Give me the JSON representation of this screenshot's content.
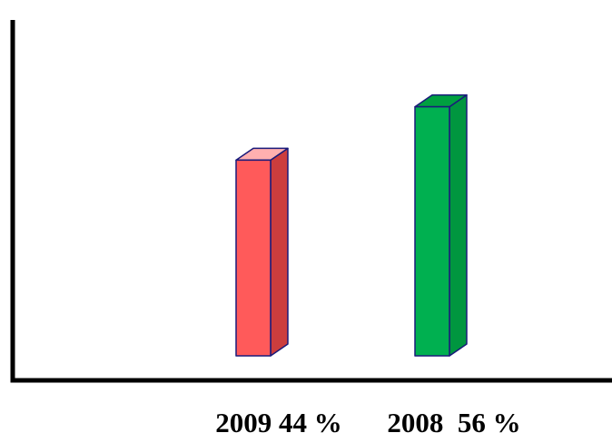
{
  "chart_data": {
    "type": "bar",
    "style": "3d-column",
    "title": "",
    "xlabel": "",
    "ylabel": "",
    "categories": [
      "2009 44 %",
      "2008  56 %"
    ],
    "values": [
      44,
      56
    ],
    "ylim": [
      0,
      70
    ],
    "grid": false,
    "legend": "none",
    "colors": {
      "bars": [
        "#ff5a5a",
        "#00b050"
      ],
      "bar_tops": [
        "#ffb0b0",
        "#00a040"
      ],
      "bar_sides": [
        "#cc3d3d",
        "#00963f"
      ],
      "edge": "#1a1a7a",
      "axis": "#000000"
    }
  }
}
